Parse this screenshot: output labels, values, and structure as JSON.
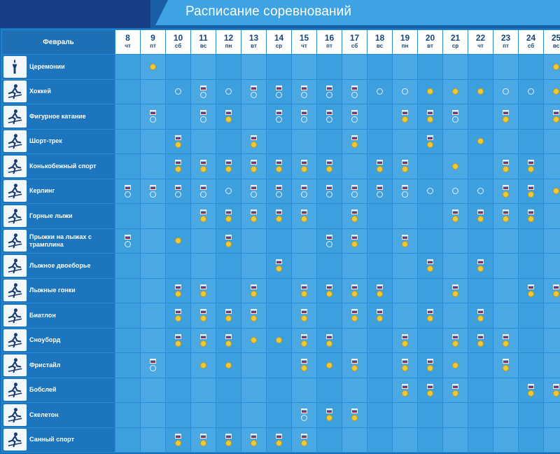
{
  "title": "Расписание соревнований",
  "month_label": "Февраль",
  "days": [
    {
      "n": "8",
      "w": "чт"
    },
    {
      "n": "9",
      "w": "пт"
    },
    {
      "n": "10",
      "w": "сб"
    },
    {
      "n": "11",
      "w": "вс"
    },
    {
      "n": "12",
      "w": "пн"
    },
    {
      "n": "13",
      "w": "вт"
    },
    {
      "n": "14",
      "w": "ср"
    },
    {
      "n": "15",
      "w": "чт"
    },
    {
      "n": "16",
      "w": "пт"
    },
    {
      "n": "17",
      "w": "сб"
    },
    {
      "n": "18",
      "w": "вс"
    },
    {
      "n": "19",
      "w": "пн"
    },
    {
      "n": "20",
      "w": "вт"
    },
    {
      "n": "21",
      "w": "ср"
    },
    {
      "n": "22",
      "w": "чт"
    },
    {
      "n": "23",
      "w": "пт"
    },
    {
      "n": "24",
      "w": "сб"
    },
    {
      "n": "25",
      "w": "вс"
    }
  ],
  "legend_codes": {
    "M": "medal",
    "P": "preliminary",
    "F": "russia-flag"
  },
  "sports": [
    {
      "name": "Церемонии",
      "icon": "torch-icon",
      "cells": [
        "",
        "M",
        "",
        "",
        "",
        "",
        "",
        "",
        "",
        "",
        "",
        "",
        "",
        "",
        "",
        "",
        "",
        "M"
      ]
    },
    {
      "name": "Хоккей",
      "icon": "hockey-icon",
      "cells": [
        "",
        "",
        "P",
        "FP",
        "P",
        "FP",
        "FP",
        "FP",
        "FP",
        "FP",
        "P",
        "P",
        "M",
        "M",
        "M",
        "P",
        "P",
        "M"
      ]
    },
    {
      "name": "Фигурное катание",
      "icon": "figure-skating-icon",
      "cells": [
        "",
        "FP",
        "",
        "FP",
        "FM",
        "",
        "FP",
        "FP",
        "FP",
        "FP",
        "",
        "FM",
        "FM",
        "FP",
        "",
        "FM",
        "",
        "FM"
      ]
    },
    {
      "name": "Шорт-трек",
      "icon": "short-track-icon",
      "cells": [
        "",
        "",
        "FM",
        "",
        "",
        "FM",
        "",
        "",
        "",
        "FM",
        "",
        "",
        "FM",
        "",
        "M",
        "",
        "",
        ""
      ]
    },
    {
      "name": "Конькобежный спорт",
      "icon": "speed-skating-icon",
      "cells": [
        "",
        "",
        "FM",
        "FM",
        "FM",
        "FM",
        "FM",
        "FM",
        "FM",
        "",
        "FM",
        "FM",
        "",
        "M",
        "",
        "FM",
        "FM",
        ""
      ]
    },
    {
      "name": "Керлинг",
      "icon": "curling-icon",
      "cells": [
        "FP",
        "FP",
        "FP",
        "FP",
        "P",
        "FP",
        "FP",
        "FP",
        "FP",
        "FP",
        "FP",
        "FP",
        "P",
        "P",
        "P",
        "FM",
        "FM",
        "M"
      ]
    },
    {
      "name": "Горные лыжи",
      "icon": "alpine-skiing-icon",
      "cells": [
        "",
        "",
        "",
        "FM",
        "FM",
        "FM",
        "FM",
        "FM",
        "",
        "FM",
        "",
        "",
        "",
        "FM",
        "FM",
        "FM",
        "FM",
        ""
      ]
    },
    {
      "name": "Прыжки на лыжах с трамплина",
      "icon": "ski-jumping-icon",
      "cells": [
        "FP",
        "",
        "M",
        "",
        "FM",
        "",
        "",
        "",
        "FP",
        "FM",
        "",
        "FM",
        "",
        "",
        "",
        "",
        "",
        ""
      ]
    },
    {
      "name": "Лыжное двоеборье",
      "icon": "nordic-combined-icon",
      "cells": [
        "",
        "",
        "",
        "",
        "",
        "",
        "FM",
        "",
        "",
        "",
        "",
        "",
        "FM",
        "",
        "FM",
        "",
        "",
        ""
      ]
    },
    {
      "name": "Лыжные гонки",
      "icon": "cross-country-icon",
      "cells": [
        "",
        "",
        "FM",
        "FM",
        "",
        "FM",
        "",
        "FM",
        "FM",
        "FM",
        "FM",
        "",
        "",
        "FM",
        "",
        "",
        "FM",
        "FM"
      ]
    },
    {
      "name": "Биатлон",
      "icon": "biathlon-icon",
      "cells": [
        "",
        "",
        "FM",
        "FM",
        "FM",
        "FM",
        "",
        "FM",
        "",
        "FM",
        "FM",
        "",
        "FM",
        "",
        "FM",
        "",
        "",
        ""
      ]
    },
    {
      "name": "Сноуборд",
      "icon": "snowboard-icon",
      "cells": [
        "",
        "",
        "FM",
        "FM",
        "FM",
        "M",
        "M",
        "FM",
        "FM",
        "",
        "",
        "FM",
        "",
        "FM",
        "FM",
        "FM",
        "",
        ""
      ]
    },
    {
      "name": "Фристайл",
      "icon": "freestyle-icon",
      "cells": [
        "",
        "FP",
        "",
        "M",
        "M",
        "",
        "",
        "FM",
        "M",
        "FM",
        "",
        "FM",
        "FM",
        "M",
        "",
        "FM",
        "",
        ""
      ]
    },
    {
      "name": "Бобслей",
      "icon": "bobsleigh-icon",
      "cells": [
        "",
        "",
        "",
        "",
        "",
        "",
        "",
        "",
        "",
        "",
        "",
        "FM",
        "FM",
        "FM",
        "",
        "",
        "FM",
        "FM"
      ]
    },
    {
      "name": "Скелетон",
      "icon": "skeleton-icon",
      "cells": [
        "",
        "",
        "",
        "",
        "",
        "",
        "",
        "FP",
        "FM",
        "FM",
        "",
        "",
        "",
        "",
        "",
        "",
        "",
        ""
      ]
    },
    {
      "name": "Санный спорт",
      "icon": "luge-icon",
      "cells": [
        "",
        "",
        "FM",
        "FM",
        "FM",
        "FM",
        "FM",
        "FM",
        "",
        "",
        "",
        "",
        "",
        "",
        "",
        "",
        "",
        ""
      ]
    }
  ]
}
